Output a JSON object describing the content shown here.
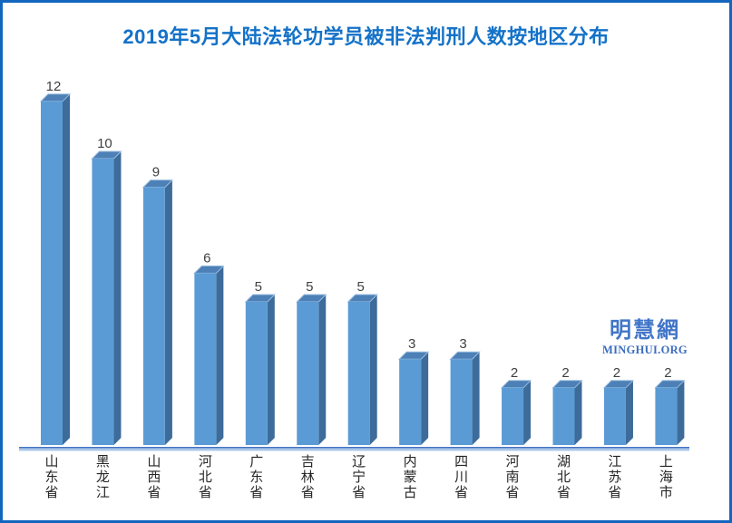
{
  "frame": {
    "border_color": "#1266be",
    "background_color": "#ffffff"
  },
  "title": "2019年5月大陆法轮功学员被非法判刑人数按地区分布",
  "title_color": "#1472c8",
  "watermark": {
    "cjk": "明慧網",
    "latin": "MINGHUI.ORG",
    "color": "#4175c8"
  },
  "chart_data": {
    "type": "bar",
    "style": "3d-column",
    "title": "2019年5月大陆法轮功学员被非法判刑人数按地区分布",
    "categories": [
      "山东省",
      "黑龙江",
      "山西省",
      "河北省",
      "广东省",
      "吉林省",
      "辽宁省",
      "内蒙古",
      "四川省",
      "河南省",
      "湖北省",
      "江苏省",
      "上海市"
    ],
    "values": [
      12,
      10,
      9,
      6,
      5,
      5,
      5,
      3,
      3,
      2,
      2,
      2,
      2
    ],
    "data_labels": [
      12,
      10,
      9,
      6,
      5,
      5,
      5,
      3,
      3,
      2,
      2,
      2,
      2
    ],
    "xlabel": "",
    "ylabel": "",
    "ylim": [
      0,
      12
    ],
    "grid": false,
    "legend": false,
    "value_axis_visible": false,
    "colors": {
      "bar_front": "#5b9bd5",
      "bar_side": "#3d6b9a",
      "bar_top": "#4c80b6",
      "bar_top_edge": "#9cbee0",
      "axis_line_dark": "#4472c4",
      "axis_line_light": "#a9c6e8",
      "data_label": "#404040",
      "category_label": "#262626"
    }
  }
}
